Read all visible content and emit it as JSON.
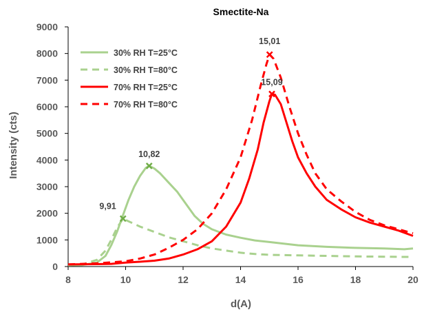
{
  "chart_data": {
    "type": "line",
    "title": "Smectite-Na",
    "xlabel": "d(A)",
    "ylabel": "Intensity (cts)",
    "xlim": [
      8,
      20
    ],
    "ylim": [
      0,
      9000
    ],
    "xticks": [
      8,
      10,
      12,
      14,
      16,
      18,
      20
    ],
    "yticks": [
      0,
      1000,
      2000,
      3000,
      4000,
      5000,
      6000,
      7000,
      8000,
      9000
    ],
    "grid": false,
    "legend_position": "top-left",
    "series": [
      {
        "name": "30% RH T=25°C",
        "color": "#a9d18e",
        "dash": "solid",
        "points": [
          [
            8,
            50
          ],
          [
            8.5,
            60
          ],
          [
            9,
            150
          ],
          [
            9.3,
            400
          ],
          [
            9.5,
            800
          ],
          [
            9.7,
            1300
          ],
          [
            9.9,
            1900
          ],
          [
            10.1,
            2500
          ],
          [
            10.3,
            3000
          ],
          [
            10.5,
            3400
          ],
          [
            10.7,
            3700
          ],
          [
            10.82,
            3780
          ],
          [
            11,
            3680
          ],
          [
            11.2,
            3500
          ],
          [
            11.5,
            3150
          ],
          [
            11.8,
            2800
          ],
          [
            12.1,
            2350
          ],
          [
            12.4,
            1900
          ],
          [
            12.7,
            1600
          ],
          [
            13,
            1400
          ],
          [
            13.5,
            1200
          ],
          [
            14,
            1080
          ],
          [
            14.5,
            980
          ],
          [
            15,
            920
          ],
          [
            15.5,
            860
          ],
          [
            16,
            800
          ],
          [
            17,
            740
          ],
          [
            18,
            700
          ],
          [
            19,
            680
          ],
          [
            19.7,
            650
          ],
          [
            20,
            680
          ]
        ]
      },
      {
        "name": "30% RH T=80°C",
        "color": "#a9d18e",
        "dash": "dashed",
        "points": [
          [
            8,
            50
          ],
          [
            8.5,
            80
          ],
          [
            9,
            250
          ],
          [
            9.3,
            600
          ],
          [
            9.5,
            1000
          ],
          [
            9.7,
            1450
          ],
          [
            9.91,
            1800
          ],
          [
            10.1,
            1700
          ],
          [
            10.5,
            1500
          ],
          [
            11,
            1300
          ],
          [
            11.5,
            1100
          ],
          [
            12,
            950
          ],
          [
            12.5,
            800
          ],
          [
            13,
            680
          ],
          [
            13.5,
            600
          ],
          [
            14,
            520
          ],
          [
            14.5,
            470
          ],
          [
            15,
            440
          ],
          [
            16,
            420
          ],
          [
            17,
            400
          ],
          [
            18,
            380
          ],
          [
            19,
            370
          ],
          [
            20,
            360
          ]
        ]
      },
      {
        "name": "70% RH T=25°C",
        "color": "#ff0000",
        "dash": "solid",
        "points": [
          [
            8,
            80
          ],
          [
            9,
            90
          ],
          [
            9.5,
            100
          ],
          [
            10,
            150
          ],
          [
            10.5,
            180
          ],
          [
            11,
            220
          ],
          [
            11.5,
            300
          ],
          [
            12,
            450
          ],
          [
            12.5,
            650
          ],
          [
            13,
            950
          ],
          [
            13.5,
            1500
          ],
          [
            14,
            2400
          ],
          [
            14.3,
            3300
          ],
          [
            14.6,
            4400
          ],
          [
            14.8,
            5400
          ],
          [
            15,
            6200
          ],
          [
            15.09,
            6480
          ],
          [
            15.2,
            6450
          ],
          [
            15.4,
            6100
          ],
          [
            15.6,
            5400
          ],
          [
            15.8,
            4700
          ],
          [
            16,
            4100
          ],
          [
            16.3,
            3500
          ],
          [
            16.6,
            3000
          ],
          [
            17,
            2500
          ],
          [
            17.5,
            2150
          ],
          [
            18,
            1850
          ],
          [
            18.5,
            1650
          ],
          [
            19,
            1500
          ],
          [
            19.5,
            1350
          ],
          [
            20,
            1150
          ]
        ]
      },
      {
        "name": "70% RH T=80°C",
        "color": "#ff0000",
        "dash": "dashed",
        "points": [
          [
            8,
            80
          ],
          [
            9,
            120
          ],
          [
            10,
            200
          ],
          [
            10.5,
            300
          ],
          [
            11,
            450
          ],
          [
            11.5,
            700
          ],
          [
            12,
            1000
          ],
          [
            12.5,
            1400
          ],
          [
            13,
            2000
          ],
          [
            13.5,
            2900
          ],
          [
            14,
            4100
          ],
          [
            14.4,
            5500
          ],
          [
            14.7,
            6800
          ],
          [
            14.9,
            7600
          ],
          [
            15.01,
            7960
          ],
          [
            15.15,
            7800
          ],
          [
            15.4,
            7100
          ],
          [
            15.7,
            6000
          ],
          [
            16,
            5000
          ],
          [
            16.3,
            4200
          ],
          [
            16.6,
            3500
          ],
          [
            17,
            2900
          ],
          [
            17.5,
            2450
          ],
          [
            18,
            2050
          ],
          [
            18.5,
            1750
          ],
          [
            19,
            1550
          ],
          [
            19.5,
            1400
          ],
          [
            20,
            1250
          ]
        ]
      }
    ],
    "annotations": [
      {
        "label": "10,82",
        "x": 10.82,
        "y": 3780,
        "color": "#70ad47"
      },
      {
        "label": "9,91",
        "x": 9.91,
        "y": 1800,
        "color": "#70ad47"
      },
      {
        "label": "15,01",
        "x": 15.01,
        "y": 7960,
        "color": "#ff0000"
      },
      {
        "label": "15,09",
        "x": 15.09,
        "y": 6480,
        "color": "#ff0000"
      }
    ]
  }
}
